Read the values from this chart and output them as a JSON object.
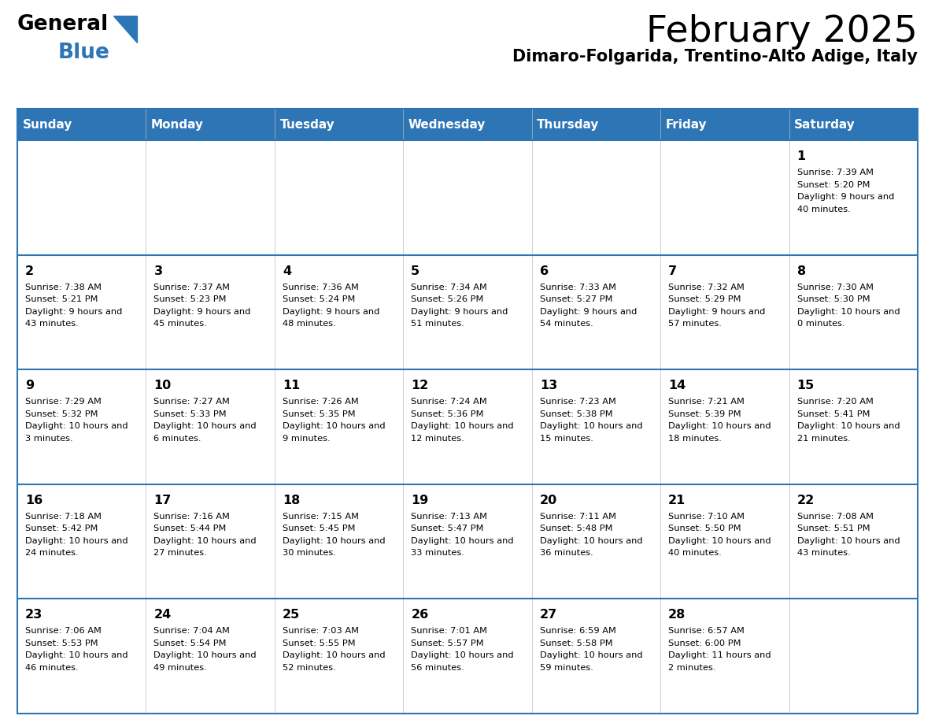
{
  "title": "February 2025",
  "subtitle": "Dimaro-Folgarida, Trentino-Alto Adige, Italy",
  "header_color": "#2E75B6",
  "header_text_color": "#FFFFFF",
  "day_names": [
    "Sunday",
    "Monday",
    "Tuesday",
    "Wednesday",
    "Thursday",
    "Friday",
    "Saturday"
  ],
  "bg_color": "#FFFFFF",
  "cell_bg_color": "#FFFFFF",
  "text_color": "#000000",
  "border_color": "#2E75B6",
  "line_color_light": "#AAAAAA",
  "days": [
    {
      "day": 1,
      "col": 6,
      "row": 0,
      "sunrise": "7:39 AM",
      "sunset": "5:20 PM",
      "daylight": "9 hours and 40 minutes."
    },
    {
      "day": 2,
      "col": 0,
      "row": 1,
      "sunrise": "7:38 AM",
      "sunset": "5:21 PM",
      "daylight": "9 hours and 43 minutes."
    },
    {
      "day": 3,
      "col": 1,
      "row": 1,
      "sunrise": "7:37 AM",
      "sunset": "5:23 PM",
      "daylight": "9 hours and 45 minutes."
    },
    {
      "day": 4,
      "col": 2,
      "row": 1,
      "sunrise": "7:36 AM",
      "sunset": "5:24 PM",
      "daylight": "9 hours and 48 minutes."
    },
    {
      "day": 5,
      "col": 3,
      "row": 1,
      "sunrise": "7:34 AM",
      "sunset": "5:26 PM",
      "daylight": "9 hours and 51 minutes."
    },
    {
      "day": 6,
      "col": 4,
      "row": 1,
      "sunrise": "7:33 AM",
      "sunset": "5:27 PM",
      "daylight": "9 hours and 54 minutes."
    },
    {
      "day": 7,
      "col": 5,
      "row": 1,
      "sunrise": "7:32 AM",
      "sunset": "5:29 PM",
      "daylight": "9 hours and 57 minutes."
    },
    {
      "day": 8,
      "col": 6,
      "row": 1,
      "sunrise": "7:30 AM",
      "sunset": "5:30 PM",
      "daylight": "10 hours and 0 minutes."
    },
    {
      "day": 9,
      "col": 0,
      "row": 2,
      "sunrise": "7:29 AM",
      "sunset": "5:32 PM",
      "daylight": "10 hours and 3 minutes."
    },
    {
      "day": 10,
      "col": 1,
      "row": 2,
      "sunrise": "7:27 AM",
      "sunset": "5:33 PM",
      "daylight": "10 hours and 6 minutes."
    },
    {
      "day": 11,
      "col": 2,
      "row": 2,
      "sunrise": "7:26 AM",
      "sunset": "5:35 PM",
      "daylight": "10 hours and 9 minutes."
    },
    {
      "day": 12,
      "col": 3,
      "row": 2,
      "sunrise": "7:24 AM",
      "sunset": "5:36 PM",
      "daylight": "10 hours and 12 minutes."
    },
    {
      "day": 13,
      "col": 4,
      "row": 2,
      "sunrise": "7:23 AM",
      "sunset": "5:38 PM",
      "daylight": "10 hours and 15 minutes."
    },
    {
      "day": 14,
      "col": 5,
      "row": 2,
      "sunrise": "7:21 AM",
      "sunset": "5:39 PM",
      "daylight": "10 hours and 18 minutes."
    },
    {
      "day": 15,
      "col": 6,
      "row": 2,
      "sunrise": "7:20 AM",
      "sunset": "5:41 PM",
      "daylight": "10 hours and 21 minutes."
    },
    {
      "day": 16,
      "col": 0,
      "row": 3,
      "sunrise": "7:18 AM",
      "sunset": "5:42 PM",
      "daylight": "10 hours and 24 minutes."
    },
    {
      "day": 17,
      "col": 1,
      "row": 3,
      "sunrise": "7:16 AM",
      "sunset": "5:44 PM",
      "daylight": "10 hours and 27 minutes."
    },
    {
      "day": 18,
      "col": 2,
      "row": 3,
      "sunrise": "7:15 AM",
      "sunset": "5:45 PM",
      "daylight": "10 hours and 30 minutes."
    },
    {
      "day": 19,
      "col": 3,
      "row": 3,
      "sunrise": "7:13 AM",
      "sunset": "5:47 PM",
      "daylight": "10 hours and 33 minutes."
    },
    {
      "day": 20,
      "col": 4,
      "row": 3,
      "sunrise": "7:11 AM",
      "sunset": "5:48 PM",
      "daylight": "10 hours and 36 minutes."
    },
    {
      "day": 21,
      "col": 5,
      "row": 3,
      "sunrise": "7:10 AM",
      "sunset": "5:50 PM",
      "daylight": "10 hours and 40 minutes."
    },
    {
      "day": 22,
      "col": 6,
      "row": 3,
      "sunrise": "7:08 AM",
      "sunset": "5:51 PM",
      "daylight": "10 hours and 43 minutes."
    },
    {
      "day": 23,
      "col": 0,
      "row": 4,
      "sunrise": "7:06 AM",
      "sunset": "5:53 PM",
      "daylight": "10 hours and 46 minutes."
    },
    {
      "day": 24,
      "col": 1,
      "row": 4,
      "sunrise": "7:04 AM",
      "sunset": "5:54 PM",
      "daylight": "10 hours and 49 minutes."
    },
    {
      "day": 25,
      "col": 2,
      "row": 4,
      "sunrise": "7:03 AM",
      "sunset": "5:55 PM",
      "daylight": "10 hours and 52 minutes."
    },
    {
      "day": 26,
      "col": 3,
      "row": 4,
      "sunrise": "7:01 AM",
      "sunset": "5:57 PM",
      "daylight": "10 hours and 56 minutes."
    },
    {
      "day": 27,
      "col": 4,
      "row": 4,
      "sunrise": "6:59 AM",
      "sunset": "5:58 PM",
      "daylight": "10 hours and 59 minutes."
    },
    {
      "day": 28,
      "col": 5,
      "row": 4,
      "sunrise": "6:57 AM",
      "sunset": "6:00 PM",
      "daylight": "11 hours and 2 minutes."
    }
  ]
}
